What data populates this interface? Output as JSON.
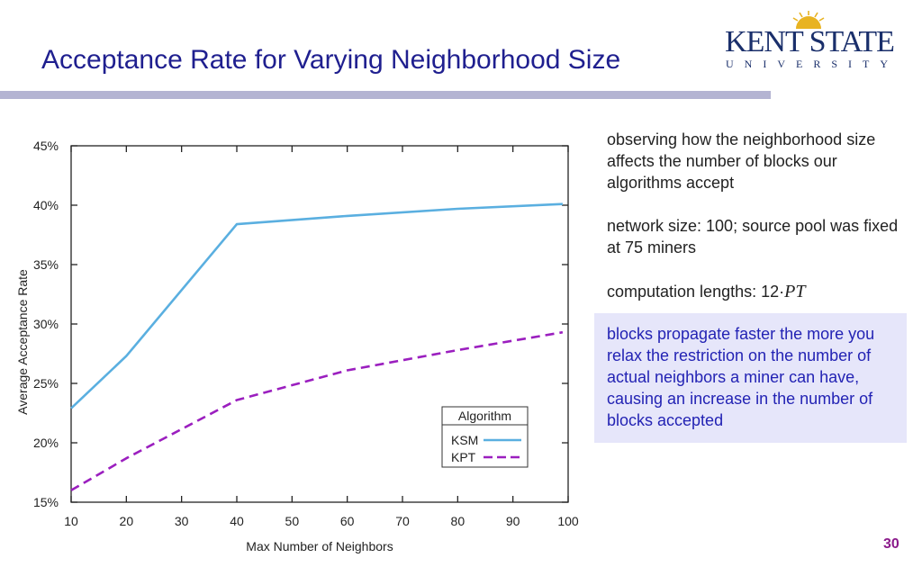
{
  "slide": {
    "title": "Acceptance Rate for Varying Neighborhood Size",
    "page_number": "30",
    "logo": {
      "name": "KENT STATE",
      "subtitle": "UNIVERSITY"
    },
    "notes": [
      "observing how the neighborhood size affects the number of blocks our algorithms accept",
      "network size: 100; source pool was fixed at 75 miners",
      "computation lengths: 12·",
      "blocks propagate faster the more you relax the restriction on the number of actual neighbors a miner can have, causing an increase in the number of blocks accepted"
    ],
    "notes_math": "PT",
    "colors": {
      "title": "#1f1f8f",
      "highlight_bg": "#e6e6fa",
      "highlight_text": "#2323b4",
      "page_number": "#8b1a8b"
    }
  },
  "chart_data": {
    "type": "line",
    "title": "",
    "xlabel": "Max Number of Neighbors",
    "ylabel": "Average Acceptance Rate",
    "xlim": [
      10,
      100
    ],
    "ylim": [
      15,
      45
    ],
    "xticks": [
      10,
      20,
      30,
      40,
      50,
      60,
      70,
      80,
      90,
      100
    ],
    "yticks": [
      "15%",
      "20%",
      "25%",
      "30%",
      "35%",
      "40%",
      "45%"
    ],
    "grid": false,
    "legend": {
      "title": "Algorithm",
      "position": "bottom-right"
    },
    "series": [
      {
        "name": "KSM",
        "color": "#5aafe0",
        "dash": false,
        "x": [
          10,
          20,
          40,
          60,
          80,
          99
        ],
        "y": [
          22.9,
          27.3,
          38.4,
          39.1,
          39.7,
          40.1
        ]
      },
      {
        "name": "KPT",
        "color": "#9b1fbf",
        "dash": true,
        "x": [
          10,
          20,
          40,
          60,
          80,
          99
        ],
        "y": [
          16.0,
          18.7,
          23.6,
          26.1,
          27.8,
          29.3
        ]
      }
    ]
  }
}
